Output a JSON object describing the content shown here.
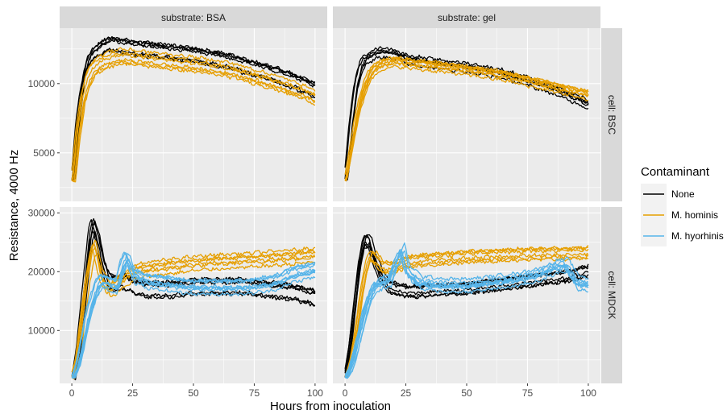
{
  "chart_data": {
    "type": "line",
    "xlabel": "Hours from inoculation",
    "ylabel": "Resistance, 4000 Hz",
    "legend": {
      "title": "Contaminant",
      "position": "right",
      "entries": [
        {
          "label": "None",
          "color": "#000000"
        },
        {
          "label": "M. hominis",
          "color": "#E69F00"
        },
        {
          "label": "M. hyorhinis",
          "color": "#56B4E9"
        }
      ]
    },
    "grid": true,
    "x_ticks": [
      0,
      25,
      50,
      75,
      100
    ],
    "xlim": [
      -5,
      105
    ],
    "facets": [
      {
        "column": "substrate: BSA",
        "row": "cell: BSC",
        "ylim": [
          1500,
          14000
        ],
        "y_ticks": [
          5000,
          10000
        ],
        "series": [
          {
            "group": "None",
            "replicates": 6,
            "x": [
              0,
              2,
              4,
              6,
              8,
              12,
              15,
              18,
              25,
              35,
              50,
              65,
              75,
              85,
              95,
              100
            ],
            "y": [
              3000,
              7500,
              10100,
              11400,
              12000,
              12500,
              12800,
              12700,
              12500,
              12300,
              12000,
              11500,
              11000,
              10500,
              9800,
              9400
            ]
          },
          {
            "group": "M. hominis",
            "replicates": 6,
            "x": [
              0,
              2,
              4,
              6,
              8,
              10,
              15,
              20,
              25,
              35,
              50,
              65,
              75,
              85,
              95,
              100
            ],
            "y": [
              3000,
              6500,
              9000,
              10300,
              11000,
              11400,
              11800,
              12000,
              11900,
              11700,
              11400,
              11000,
              10500,
              10000,
              9400,
              9000
            ]
          }
        ]
      },
      {
        "column": "substrate: gel",
        "row": "cell: BSC",
        "ylim": [
          1500,
          14000
        ],
        "y_ticks": [
          5000,
          10000
        ],
        "series": [
          {
            "group": "None",
            "replicates": 5,
            "x": [
              0,
              2,
              4,
              6,
              8,
              12,
              15,
              20,
              25,
              35,
              50,
              65,
              75,
              85,
              95,
              100
            ],
            "y": [
              3000,
              6800,
              9600,
              11000,
              11600,
              12000,
              12100,
              12000,
              11600,
              11300,
              11000,
              10500,
              10000,
              9400,
              8700,
              8300
            ]
          },
          {
            "group": "M. hominis",
            "replicates": 7,
            "x": [
              0,
              2,
              4,
              6,
              8,
              10,
              12,
              15,
              20,
              25,
              35,
              50,
              65,
              75,
              85,
              95,
              100
            ],
            "y": [
              3000,
              5000,
              7000,
              8600,
              9800,
              10600,
              11100,
              11400,
              11600,
              11500,
              11300,
              11000,
              10600,
              10200,
              9800,
              9400,
              9200
            ]
          }
        ]
      },
      {
        "column": "substrate: BSA",
        "row": "cell: MDCK",
        "ylim": [
          1000,
          31000
        ],
        "y_ticks": [
          10000,
          20000,
          30000
        ],
        "series": [
          {
            "group": "None",
            "replicates": 6,
            "x": [
              0,
              2,
              4,
              6,
              7,
              8,
              10,
              12,
              14,
              17,
              20,
              25,
              30,
              40,
              50,
              60,
              70,
              80,
              90,
              95,
              100
            ],
            "y": [
              2000,
              7000,
              15000,
              23000,
              26500,
              28000,
              25000,
              21000,
              18500,
              18000,
              18500,
              17500,
              17000,
              17000,
              17500,
              17500,
              17500,
              17000,
              16500,
              16000,
              15500
            ]
          },
          {
            "group": "M. hominis",
            "replicates": 6,
            "x": [
              0,
              2,
              4,
              6,
              8,
              9,
              10,
              12,
              15,
              20,
              25,
              30,
              40,
              50,
              60,
              70,
              80,
              90,
              100
            ],
            "y": [
              2000,
              5000,
              12000,
              19000,
              23500,
              24500,
              23000,
              19000,
              17000,
              18500,
              20000,
              20500,
              21000,
              21500,
              21800,
              22000,
              22300,
              22600,
              23000
            ]
          },
          {
            "group": "M. hyorhinis",
            "replicates": 8,
            "x": [
              0,
              2,
              4,
              6,
              8,
              10,
              12,
              15,
              18,
              20,
              22,
              25,
              30,
              40,
              50,
              60,
              70,
              80,
              85,
              90,
              95,
              100
            ],
            "y": [
              2000,
              4000,
              8000,
              12000,
              15000,
              17500,
              18500,
              18000,
              17500,
              20500,
              22500,
              19500,
              18500,
              18000,
              17500,
              17500,
              17500,
              18000,
              18500,
              19500,
              20000,
              20500
            ]
          }
        ]
      },
      {
        "column": "substrate: gel",
        "row": "cell: MDCK",
        "ylim": [
          1000,
          31000
        ],
        "y_ticks": [
          10000,
          20000,
          30000
        ],
        "series": [
          {
            "group": "None",
            "replicates": 6,
            "x": [
              0,
              2,
              4,
              6,
              8,
              10,
              12,
              15,
              18,
              20,
              25,
              30,
              40,
              50,
              60,
              70,
              80,
              90,
              100
            ],
            "y": [
              2000,
              7000,
              14000,
              21000,
              25000,
              25000,
              22000,
              19000,
              17500,
              17000,
              16500,
              16500,
              16800,
              17000,
              17500,
              18000,
              18500,
              19000,
              20000
            ]
          },
          {
            "group": "M. hominis",
            "replicates": 6,
            "x": [
              0,
              2,
              4,
              6,
              8,
              10,
              12,
              15,
              20,
              25,
              30,
              40,
              50,
              60,
              70,
              80,
              90,
              100
            ],
            "y": [
              2000,
              4500,
              9000,
              15000,
              20000,
              23000,
              22500,
              21000,
              21000,
              22000,
              22200,
              22500,
              22800,
              23000,
              23200,
              23300,
              23400,
              23500
            ]
          },
          {
            "group": "M. hyorhinis",
            "replicates": 8,
            "x": [
              0,
              2,
              4,
              6,
              8,
              10,
              12,
              15,
              18,
              20,
              23,
              25,
              30,
              40,
              50,
              60,
              70,
              80,
              85,
              90,
              95,
              100
            ],
            "y": [
              2000,
              3500,
              6500,
              10000,
              13500,
              16000,
              17500,
              18000,
              18500,
              21000,
              23500,
              20000,
              18000,
              17500,
              17500,
              18000,
              18500,
              19500,
              20500,
              21000,
              18000,
              17500
            ]
          }
        ]
      }
    ]
  }
}
